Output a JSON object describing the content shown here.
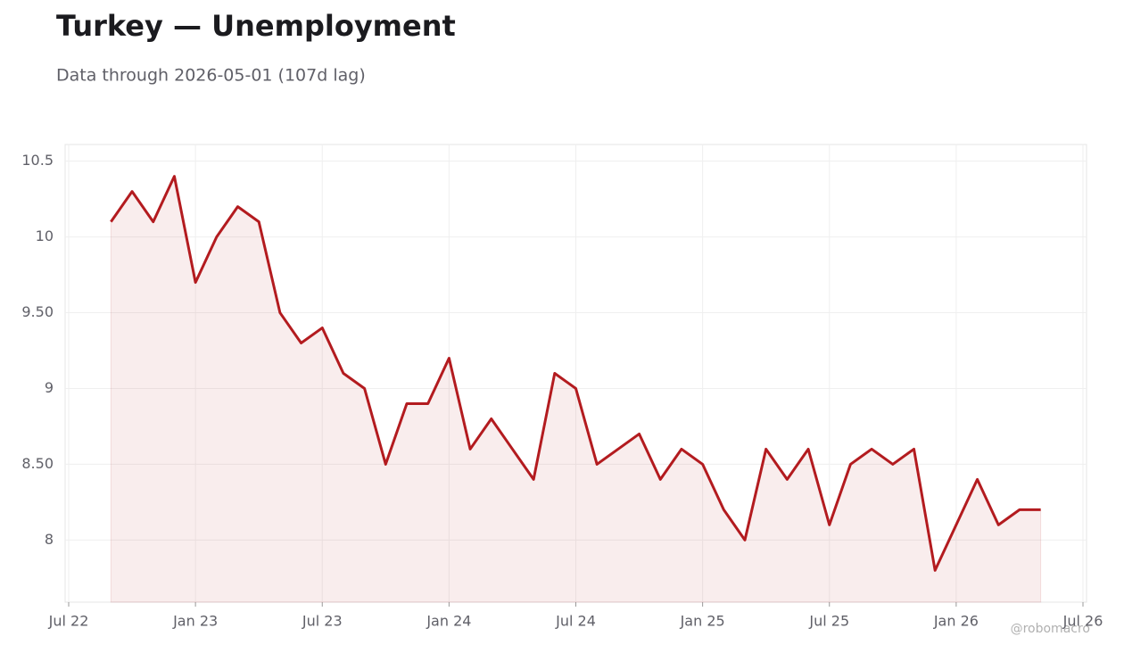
{
  "chart_data": {
    "type": "line",
    "title": "Turkey — Unemployment",
    "subtitle": "Data through 2026-05-01 (107d lag)",
    "watermark": "@robomacro",
    "x": [
      "2022-09",
      "2022-10",
      "2022-11",
      "2022-12",
      "2023-01",
      "2023-02",
      "2023-03",
      "2023-04",
      "2023-05",
      "2023-06",
      "2023-07",
      "2023-08",
      "2023-09",
      "2023-10",
      "2023-11",
      "2023-12",
      "2024-01",
      "2024-02",
      "2024-03",
      "2024-04",
      "2024-05",
      "2024-06",
      "2024-07",
      "2024-08",
      "2024-09",
      "2024-10",
      "2024-11",
      "2024-12",
      "2025-01",
      "2025-02",
      "2025-03",
      "2025-04",
      "2025-05",
      "2025-06",
      "2025-07",
      "2025-08",
      "2025-09",
      "2025-10",
      "2025-11",
      "2025-12",
      "2026-01",
      "2026-02",
      "2026-03",
      "2026-04",
      "2026-05"
    ],
    "series": [
      {
        "name": "Unemployment",
        "color": "#b31b1f",
        "values": [
          10.1,
          10.3,
          10.1,
          10.4,
          9.7,
          10.0,
          10.2,
          10.1,
          9.5,
          9.3,
          9.4,
          9.1,
          9.0,
          8.5,
          8.9,
          8.9,
          9.2,
          8.6,
          8.8,
          8.6,
          8.4,
          9.1,
          9.0,
          8.5,
          8.6,
          8.7,
          8.4,
          8.6,
          8.5,
          8.2,
          8.0,
          8.6,
          8.4,
          8.6,
          8.1,
          8.5,
          8.6,
          8.5,
          8.6,
          7.8,
          8.1,
          8.4,
          8.1,
          8.2,
          8.2
        ]
      }
    ],
    "xlim": [
      "2022-07",
      "2026-07"
    ],
    "xticks": [
      {
        "value": "2022-07",
        "label": "Jul 22"
      },
      {
        "value": "2023-01",
        "label": "Jan 23"
      },
      {
        "value": "2023-07",
        "label": "Jul 23"
      },
      {
        "value": "2024-01",
        "label": "Jan 24"
      },
      {
        "value": "2024-07",
        "label": "Jul 24"
      },
      {
        "value": "2025-01",
        "label": "Jan 25"
      },
      {
        "value": "2025-07",
        "label": "Jul 25"
      },
      {
        "value": "2026-01",
        "label": "Jan 26"
      },
      {
        "value": "2026-07",
        "label": "Jul 26"
      }
    ],
    "ylim": [
      7.59,
      10.61
    ],
    "yticks": [
      8,
      {
        "value": 8.5,
        "label": "8.50"
      },
      9,
      {
        "value": 9.5,
        "label": "9.50"
      },
      10,
      10.5
    ],
    "grid": true
  }
}
